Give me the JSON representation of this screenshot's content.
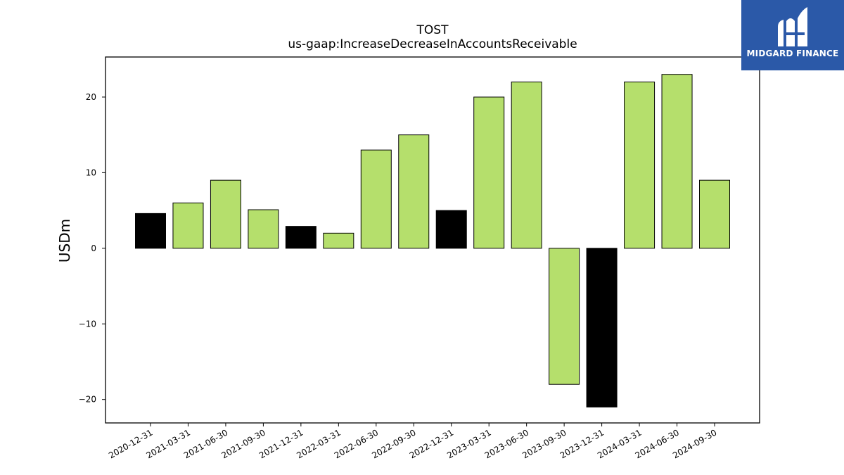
{
  "chart_data": {
    "type": "bar",
    "title": "TOST",
    "subtitle": "us-gaap:IncreaseDecreaseInAccountsReceivable",
    "xlabel": "",
    "ylabel": "USDm",
    "ylim": [
      -23.1,
      25.3
    ],
    "yticks": [
      -20,
      -10,
      0,
      10,
      20
    ],
    "ytick_labels": [
      "−20",
      "−10",
      "0",
      "10",
      "20"
    ],
    "categories": [
      "2020-12-31",
      "2021-03-31",
      "2021-06-30",
      "2021-09-30",
      "2021-12-31",
      "2022-03-31",
      "2022-06-30",
      "2022-09-30",
      "2022-12-31",
      "2023-03-31",
      "2023-06-30",
      "2023-09-30",
      "2023-12-31",
      "2024-03-31",
      "2024-06-30",
      "2024-09-30"
    ],
    "values": [
      4.6,
      6,
      9,
      5.1,
      2.9,
      2,
      13,
      15,
      5,
      20,
      22,
      -18,
      -21,
      22,
      23,
      9
    ],
    "bar_colors": [
      "#000000",
      "#b5df6c",
      "#b5df6c",
      "#b5df6c",
      "#000000",
      "#b5df6c",
      "#b5df6c",
      "#b5df6c",
      "#000000",
      "#b5df6c",
      "#b5df6c",
      "#b5df6c",
      "#000000",
      "#b5df6c",
      "#b5df6c",
      "#b5df6c"
    ],
    "grid": false,
    "legend": "none"
  },
  "logo": {
    "text": "MIDGARD FINANCE",
    "background": "#2b59a8"
  }
}
